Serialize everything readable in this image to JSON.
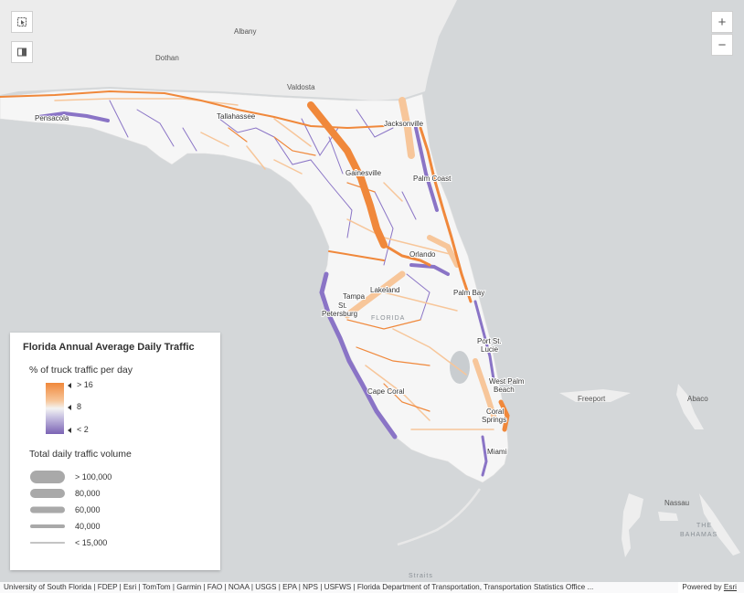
{
  "map": {
    "places": {
      "albany": "Albany",
      "dothan": "Dothan",
      "valdosta": "Valdosta",
      "tallahassee": "Tallahassee",
      "jacksonville": "Jacksonville",
      "pensacola": "Pensacola",
      "gainesville": "Gainesville",
      "palm_coast": "Palm Coast",
      "orlando": "Orlando",
      "lakeland": "Lakeland",
      "tampa": "Tampa",
      "st_petersburg_1": "St.",
      "st_petersburg_2": "Petersburg",
      "florida": "FLORIDA",
      "palm_bay": "Palm Bay",
      "port_st_lucie_1": "Port St.",
      "port_st_lucie_2": "Lucie",
      "west_palm_beach_1": "West Palm",
      "west_palm_beach_2": "Beach",
      "cape_coral": "Cape Coral",
      "coral_springs_1": "Coral",
      "coral_springs_2": "Springs",
      "miami": "Miami",
      "freeport": "Freeport",
      "abaco": "Abaco",
      "nassau": "Nassau",
      "the_bahamas_1": "THE",
      "the_bahamas_2": "BAHAMAS",
      "straits": "Straits"
    },
    "colors": {
      "water": "#d4d7d9",
      "land": "#ececec",
      "florida_land": "#f6f6f6",
      "high_truck": "#f0883b",
      "mid_truck": "#f7c69a",
      "low_truck": "#7b63b4"
    }
  },
  "controls": {
    "zoom_in": "+",
    "zoom_out": "−",
    "left_button_icons": [
      "select-icon",
      "basemap-icon"
    ]
  },
  "legend": {
    "title": "Florida Annual Average Daily Traffic",
    "color_subtitle": "% of truck traffic per day",
    "color_stops": [
      {
        "label": "> 16",
        "value": 16
      },
      {
        "label": "8",
        "value": 8
      },
      {
        "label": "< 2",
        "value": 2
      }
    ],
    "size_subtitle": "Total daily traffic volume",
    "size_stops": [
      {
        "label": "> 100,000",
        "value": 100000
      },
      {
        "label": "80,000",
        "value": 80000
      },
      {
        "label": "60,000",
        "value": 60000
      },
      {
        "label": "40,000",
        "value": 40000
      },
      {
        "label": "< 15,000",
        "value": 15000
      }
    ]
  },
  "attribution": {
    "text": "University of South Florida | FDEP | Esri | TomTom | Garmin | FAO | NOAA | USGS | EPA | NPS | USFWS | Florida Department of Transportation, Transportation Statistics Office ...",
    "powered_by": "Powered by",
    "powered_link": "Esri"
  }
}
